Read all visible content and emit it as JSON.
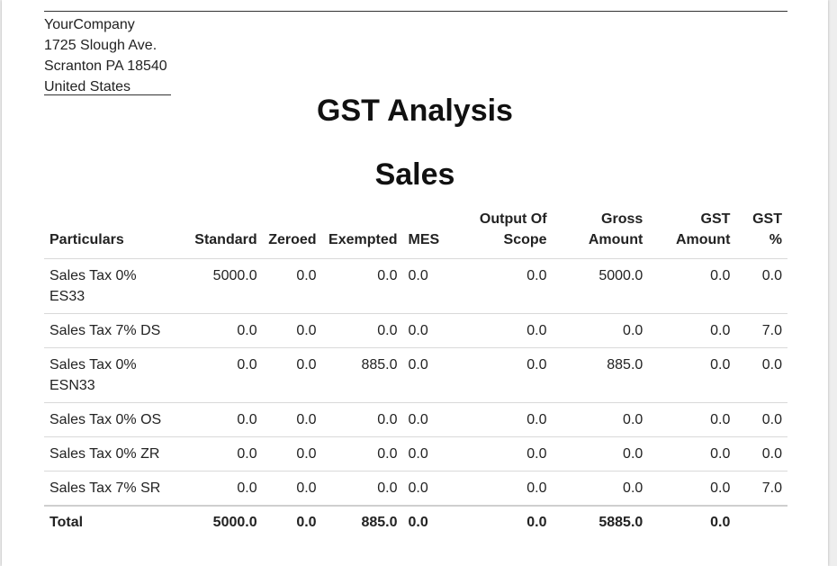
{
  "company": {
    "name": "YourCompany",
    "street": "1725 Slough Ave.",
    "city_line": "Scranton PA 18540",
    "country": "United States"
  },
  "report": {
    "title": "GST Analysis",
    "subtitle": "Sales"
  },
  "table": {
    "columns": [
      "Particulars",
      "Standard",
      "Zeroed",
      "Exempted",
      "MES",
      "Output Of Scope",
      "Gross Amount",
      "GST Amount",
      "GST %"
    ],
    "rows": [
      {
        "particulars": "Sales Tax 0% ES33",
        "standard": "5000.0",
        "zeroed": "0.0",
        "exempted": "0.0",
        "mes": "0.0",
        "output_of_scope": "0.0",
        "gross_amount": "5000.0",
        "gst_amount": "0.0",
        "gst_pct": "0.0"
      },
      {
        "particulars": "Sales Tax 7% DS",
        "standard": "0.0",
        "zeroed": "0.0",
        "exempted": "0.0",
        "mes": "0.0",
        "output_of_scope": "0.0",
        "gross_amount": "0.0",
        "gst_amount": "0.0",
        "gst_pct": "7.0"
      },
      {
        "particulars": "Sales Tax 0% ESN33",
        "standard": "0.0",
        "zeroed": "0.0",
        "exempted": "885.0",
        "mes": "0.0",
        "output_of_scope": "0.0",
        "gross_amount": "885.0",
        "gst_amount": "0.0",
        "gst_pct": "0.0"
      },
      {
        "particulars": "Sales Tax 0% OS",
        "standard": "0.0",
        "zeroed": "0.0",
        "exempted": "0.0",
        "mes": "0.0",
        "output_of_scope": "0.0",
        "gross_amount": "0.0",
        "gst_amount": "0.0",
        "gst_pct": "0.0"
      },
      {
        "particulars": "Sales Tax 0% ZR",
        "standard": "0.0",
        "zeroed": "0.0",
        "exempted": "0.0",
        "mes": "0.0",
        "output_of_scope": "0.0",
        "gross_amount": "0.0",
        "gst_amount": "0.0",
        "gst_pct": "0.0"
      },
      {
        "particulars": "Sales Tax 7% SR",
        "standard": "0.0",
        "zeroed": "0.0",
        "exempted": "0.0",
        "mes": "0.0",
        "output_of_scope": "0.0",
        "gross_amount": "0.0",
        "gst_amount": "0.0",
        "gst_pct": "7.0"
      }
    ],
    "total": {
      "label": "Total",
      "standard": "5000.0",
      "zeroed": "0.0",
      "exempted": "885.0",
      "mes": "0.0",
      "output_of_scope": "0.0",
      "gross_amount": "5885.0",
      "gst_amount": "0.0",
      "gst_pct": ""
    }
  }
}
